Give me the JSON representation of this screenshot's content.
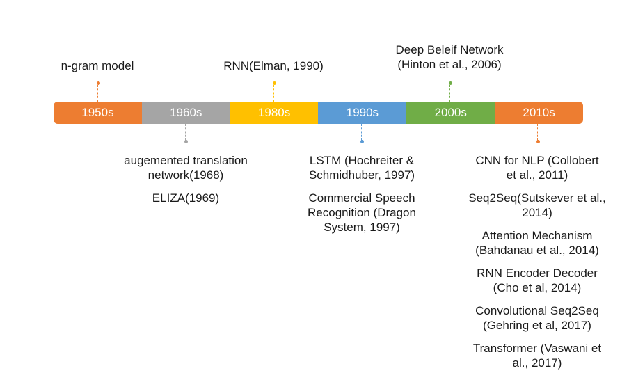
{
  "timeline": {
    "segments": [
      {
        "label": "1950s",
        "color": "#ED7D31"
      },
      {
        "label": "1960s",
        "color": "#A5A5A5"
      },
      {
        "label": "1980s",
        "color": "#FFC000"
      },
      {
        "label": "1990s",
        "color": "#5B9BD5"
      },
      {
        "label": "2000s",
        "color": "#70AD47"
      },
      {
        "label": "2010s",
        "color": "#ED7D31"
      }
    ]
  },
  "above": {
    "ngram": "n-gram model",
    "rnn": "RNN(Elman, 1990)",
    "dbn_line1": "Deep Beleif Network",
    "dbn_line2": "(Hinton et al., 2006)"
  },
  "below_1960s": {
    "item1_line1": "augemented translation",
    "item1_line2": "network(1968)",
    "item2": "ELIZA(1969)"
  },
  "below_1990s": {
    "item1_line1": "LSTM (Hochreiter &",
    "item1_line2": "Schmidhuber, 1997)",
    "item2_line1": "Commercial Speech",
    "item2_line2": "Recognition (Dragon",
    "item2_line3": "System, 1997)"
  },
  "below_2010s": {
    "item1_line1": "CNN for NLP (Collobert",
    "item1_line2": "et al., 2011)",
    "item2_line1": "Seq2Seq(Sutskever et al.,",
    "item2_line2": "2014)",
    "item3_line1": "Attention Mechanism",
    "item3_line2": "(Bahdanau et al., 2014)",
    "item4_line1": "RNN Encoder Decoder",
    "item4_line2": "(Cho et al, 2014)",
    "item5_line1": "Convolutional Seq2Seq",
    "item5_line2": "(Gehring et al, 2017)",
    "item6_line1": "Transformer (Vaswani et",
    "item6_line2": "al., 2017)"
  }
}
